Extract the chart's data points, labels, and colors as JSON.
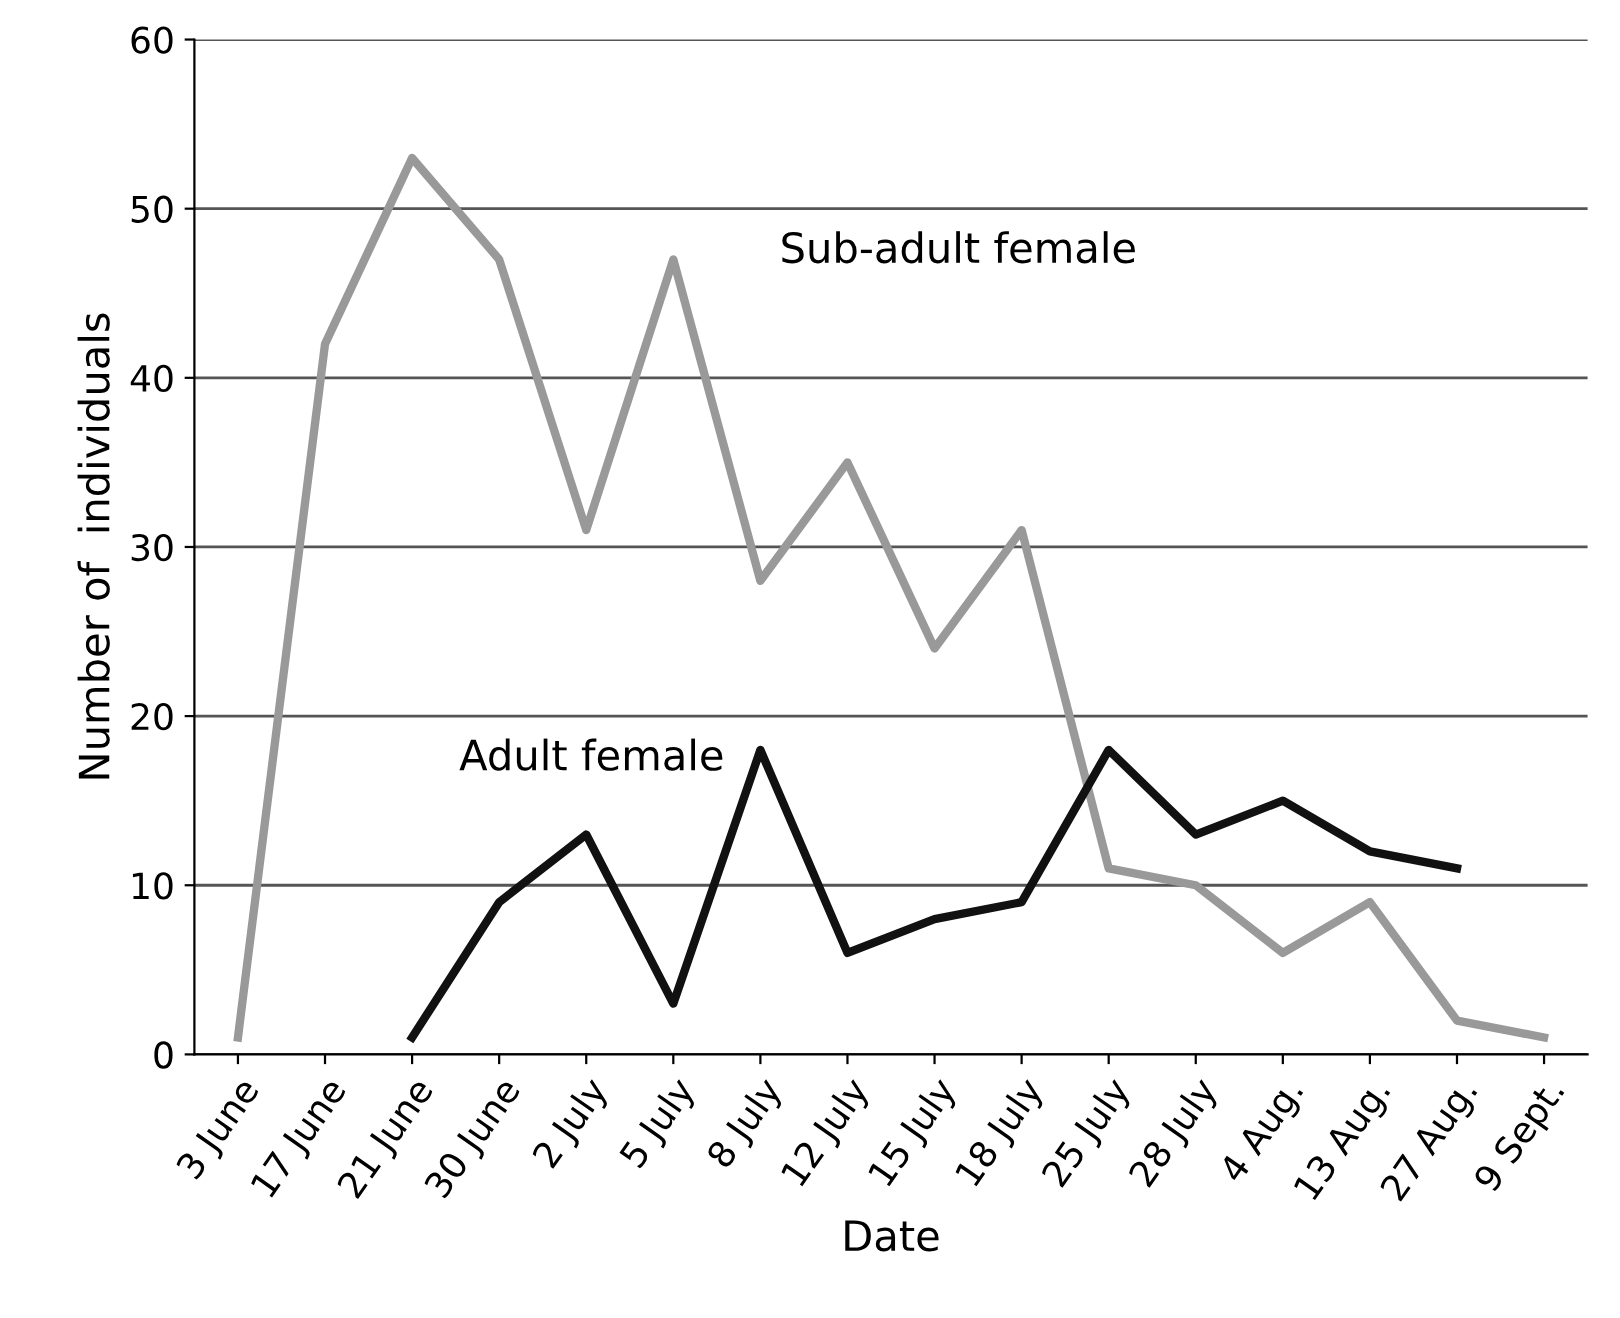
{
  "chart_data": {
    "type": "line",
    "xlabel": "Date",
    "ylabel": "Number of  individuals",
    "categories": [
      "3 June",
      "17 June",
      "21 June",
      "30 June",
      "2 July",
      "5 July",
      "8 July",
      "12 July",
      "15 July",
      "18 July",
      "25 July",
      "28 July",
      "4 Aug.",
      "13 Aug.",
      "27 Aug.",
      "9 Sept."
    ],
    "series": [
      {
        "name": "Sub-adult female",
        "color": "#999999",
        "values": [
          1,
          42,
          53,
          47,
          31,
          47,
          28,
          35,
          24,
          31,
          11,
          10,
          6,
          9,
          2,
          1
        ]
      },
      {
        "name": "Adult female",
        "color": "#111111",
        "values": [
          null,
          null,
          1,
          9,
          13,
          3,
          18,
          6,
          8,
          9,
          18,
          13,
          15,
          12,
          11,
          null
        ]
      }
    ],
    "ylim": [
      0,
      60
    ],
    "yticks": [
      0,
      10,
      20,
      30,
      40,
      50,
      60
    ],
    "grid": "y",
    "legend": false,
    "marker": "none",
    "line_style": "solid"
  }
}
